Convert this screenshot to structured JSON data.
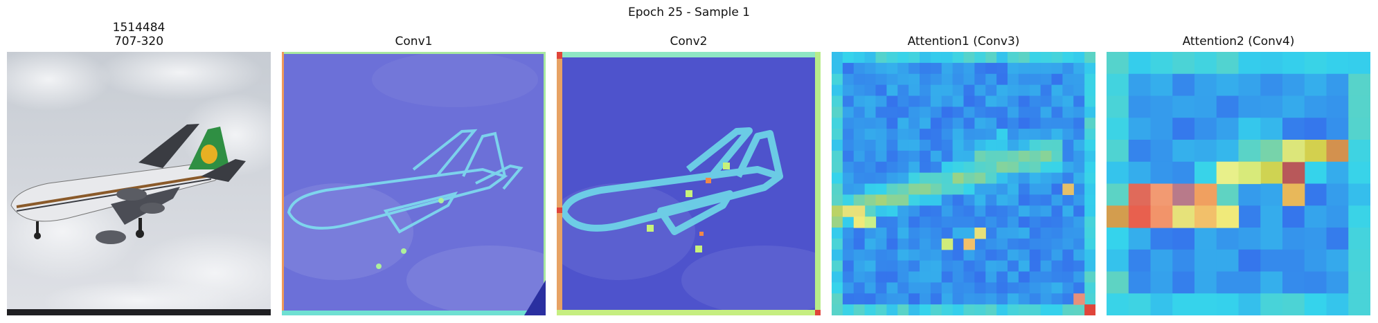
{
  "figure": {
    "suptitle": "Epoch 25 - Sample 1"
  },
  "panels": [
    {
      "id": "original",
      "title_line1": "1514484",
      "title_line2": "707-320"
    },
    {
      "id": "conv1",
      "title": "Conv1",
      "heatmap_grid": 96
    },
    {
      "id": "conv2",
      "title": "Conv2",
      "heatmap_grid": 48
    },
    {
      "id": "attention1",
      "title": "Attention1 (Conv3)",
      "heatmap_grid": 24
    },
    {
      "id": "attention2",
      "title": "Attention2 (Conv4)",
      "heatmap_grid": 12
    }
  ],
  "colormap": "jet",
  "colors": {
    "sky": "#cfd3da",
    "low_activation": "#5a5ed8",
    "high_activation": "#e0453a"
  }
}
